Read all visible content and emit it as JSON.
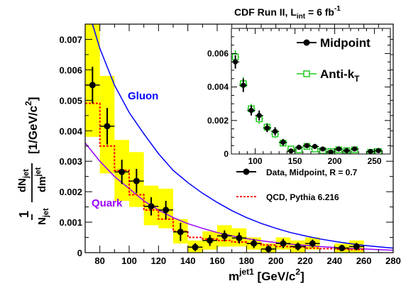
{
  "chart_data": {
    "type": "scatter",
    "title": "CDF Run II, L_int = 6 fb^-1",
    "title_parts": {
      "main": "CDF Run II, L",
      "sub": "int",
      "eq": " = 6 fb",
      "sup": "-1"
    },
    "xlabel_parts": {
      "main": "m",
      "sup": "jet1",
      "unit": " [GeV/c",
      "unit_sup": "2",
      "close": "]"
    },
    "ylabel_parts": {
      "one": "1",
      "njet": "N",
      "njet_sub": "jet",
      "dn": "dN",
      "dn_sub": "jet",
      "dm": "dm",
      "dm_sup": "jet",
      "unit": "[1/GeV/c",
      "unit_sup": "2",
      "close": "]"
    },
    "xlim": [
      70,
      280
    ],
    "ylim": [
      0,
      0.0075
    ],
    "x_ticks": [
      80,
      100,
      120,
      140,
      160,
      180,
      200,
      220,
      240,
      260,
      280
    ],
    "y_ticks": [
      0,
      0.001,
      0.002,
      0.003,
      0.004,
      0.005,
      0.006,
      0.007
    ],
    "y_tick_labels": [
      "0",
      "0.001",
      "0.002",
      "0.003",
      "0.004",
      "0.005",
      "0.006",
      "0.007"
    ],
    "colors": {
      "data": "#000000",
      "systematic_band": "#ffff00",
      "qcd": "#ff0000",
      "gluon": "#0000ff",
      "quark": "#9a00ff",
      "antikt": "#22cc22"
    },
    "series": [
      {
        "name": "Data, Midpoint, R = 0.7",
        "kind": "points",
        "x": [
          75,
          85,
          95,
          105,
          115,
          125,
          135,
          145,
          155,
          165,
          175,
          185,
          195,
          205,
          215,
          225,
          245,
          255
        ],
        "y": [
          0.0055,
          0.00415,
          0.00265,
          0.00235,
          0.00152,
          0.0014,
          0.00068,
          0.00018,
          0.0004,
          0.00055,
          0.00048,
          0.0003,
          0.00012,
          0.0003,
          0.0002,
          0.0003,
          0.00015,
          0.0002
        ],
        "err": [
          0.0006,
          0.0006,
          0.0004,
          0.0004,
          0.0003,
          0.0003,
          0.0003,
          0.00013,
          0.00018,
          0.00018,
          0.00018,
          0.00015,
          0.00012,
          0.00015,
          0.00013,
          0.00013,
          0.0001,
          0.00012
        ],
        "band_low": [
          0.0038,
          0.0026,
          0.0017,
          0.0015,
          0.0009,
          0.0008,
          0.0003,
          0.0,
          0.0001,
          0.0002,
          0.0002,
          0.0001,
          0.0,
          0.0001,
          0.0,
          0.0001,
          0.0,
          0.0
        ],
        "band_high": [
          0.0075,
          0.0058,
          0.0037,
          0.0033,
          0.0022,
          0.0021,
          0.0011,
          0.0004,
          0.0007,
          0.0009,
          0.0008,
          0.0005,
          0.0003,
          0.0005,
          0.0004,
          0.0005,
          0.0003,
          0.0004
        ]
      },
      {
        "name": "QCD, Pythia 6.216",
        "kind": "step",
        "edges": [
          70,
          80,
          90,
          100,
          110,
          120,
          130,
          140,
          150,
          160,
          170,
          180,
          190,
          200,
          210,
          220,
          230,
          240,
          250,
          260
        ],
        "values": [
          0.0049,
          0.0035,
          0.0027,
          0.0019,
          0.0014,
          0.0011,
          0.0007,
          0.0005,
          0.00045,
          0.0004,
          0.00035,
          0.0003,
          0.00025,
          0.0002,
          0.00018,
          0.00015,
          0.00013,
          0.00011,
          0.0001
        ]
      },
      {
        "name": "Gluon",
        "kind": "curve",
        "x": [
          70,
          75,
          80,
          90,
          100,
          110,
          120,
          130,
          140,
          150,
          160,
          170,
          180,
          190,
          200,
          210,
          220,
          230,
          240,
          250,
          260,
          270,
          280
        ],
        "y": [
          0.0085,
          0.0075,
          0.0067,
          0.0055,
          0.0046,
          0.0039,
          0.00325,
          0.0027,
          0.0023,
          0.00195,
          0.00165,
          0.00138,
          0.00115,
          0.00096,
          0.0008,
          0.00066,
          0.00055,
          0.00045,
          0.00037,
          0.0003,
          0.00024,
          0.00019,
          0.00015
        ]
      },
      {
        "name": "Quark",
        "kind": "curve",
        "x": [
          70,
          80,
          90,
          100,
          110,
          120,
          130,
          140,
          150,
          160,
          170,
          180,
          190,
          200,
          210,
          220,
          230,
          240,
          250,
          260,
          270,
          280
        ],
        "y": [
          0.0036,
          0.003,
          0.0025,
          0.0021,
          0.0017,
          0.0014,
          0.00115,
          0.00095,
          0.0008,
          0.00066,
          0.00055,
          0.00046,
          0.00039,
          0.00033,
          0.00028,
          0.00024,
          0.0002,
          0.00017,
          0.00014,
          0.00012,
          0.0001,
          8e-05
        ]
      }
    ],
    "curve_labels": [
      {
        "text": "Gluon",
        "series": "Gluon"
      },
      {
        "text": "Quark",
        "series": "Quark"
      }
    ],
    "legend": {
      "placement": "right",
      "entries": [
        {
          "label": "Data, Midpoint, R = 0.7",
          "marker": "point-with-line"
        },
        {
          "label": "QCD, Pythia 6.216",
          "marker": "dashed-line"
        }
      ]
    },
    "inset": {
      "xlim": [
        70,
        270
      ],
      "ylim": [
        0,
        0.0075
      ],
      "x_ticks": [
        100,
        150,
        200,
        250
      ],
      "y_ticks": [
        0,
        0.002,
        0.004,
        0.006
      ],
      "y_tick_labels": [
        "0",
        "0.002",
        "0.004",
        "0.006"
      ],
      "legend_placement": "top-right",
      "series": [
        {
          "name": "Midpoint",
          "kind": "points",
          "x": [
            75,
            85,
            95,
            105,
            115,
            125,
            135,
            145,
            155,
            165,
            175,
            185,
            195,
            205,
            215,
            225,
            245,
            255
          ],
          "y": [
            0.0055,
            0.0041,
            0.0026,
            0.0023,
            0.00155,
            0.00135,
            0.0007,
            0.00018,
            0.0004,
            0.0005,
            0.00045,
            0.0003,
            0.00012,
            0.0003,
            0.0002,
            0.0003,
            0.00015,
            0.0002
          ],
          "err": [
            0.0004,
            0.0004,
            0.0003,
            0.0003,
            0.00025,
            0.00025,
            0.0002,
            0.00013,
            0.00015,
            0.00015,
            0.00015,
            0.00012,
            0.0001,
            0.00012,
            0.0001,
            0.0001,
            0.0001,
            0.0001
          ]
        },
        {
          "name": "Anti-k_T",
          "name_parts": {
            "main": "Anti-k",
            "sub": "T"
          },
          "kind": "points",
          "x": [
            75,
            85,
            95,
            105,
            115,
            125,
            135,
            145,
            155,
            165,
            175,
            185,
            195,
            205,
            215,
            225,
            245,
            255
          ],
          "y": [
            0.0058,
            0.0042,
            0.0027,
            0.0021,
            0.0016,
            0.0012,
            0.00065,
            0.0003,
            0.00025,
            0.00045,
            0.0003,
            0.0002,
            0.00015,
            0.00025,
            0.0002,
            0.00025,
            0.0001,
            0.00015
          ],
          "err": [
            0.0004,
            0.0004,
            0.0003,
            0.0003,
            0.00025,
            0.00025,
            0.0002,
            0.00013,
            0.00015,
            0.00015,
            0.00015,
            0.00012,
            0.0001,
            0.00012,
            0.0001,
            0.0001,
            0.0001,
            0.0001
          ]
        }
      ]
    }
  }
}
